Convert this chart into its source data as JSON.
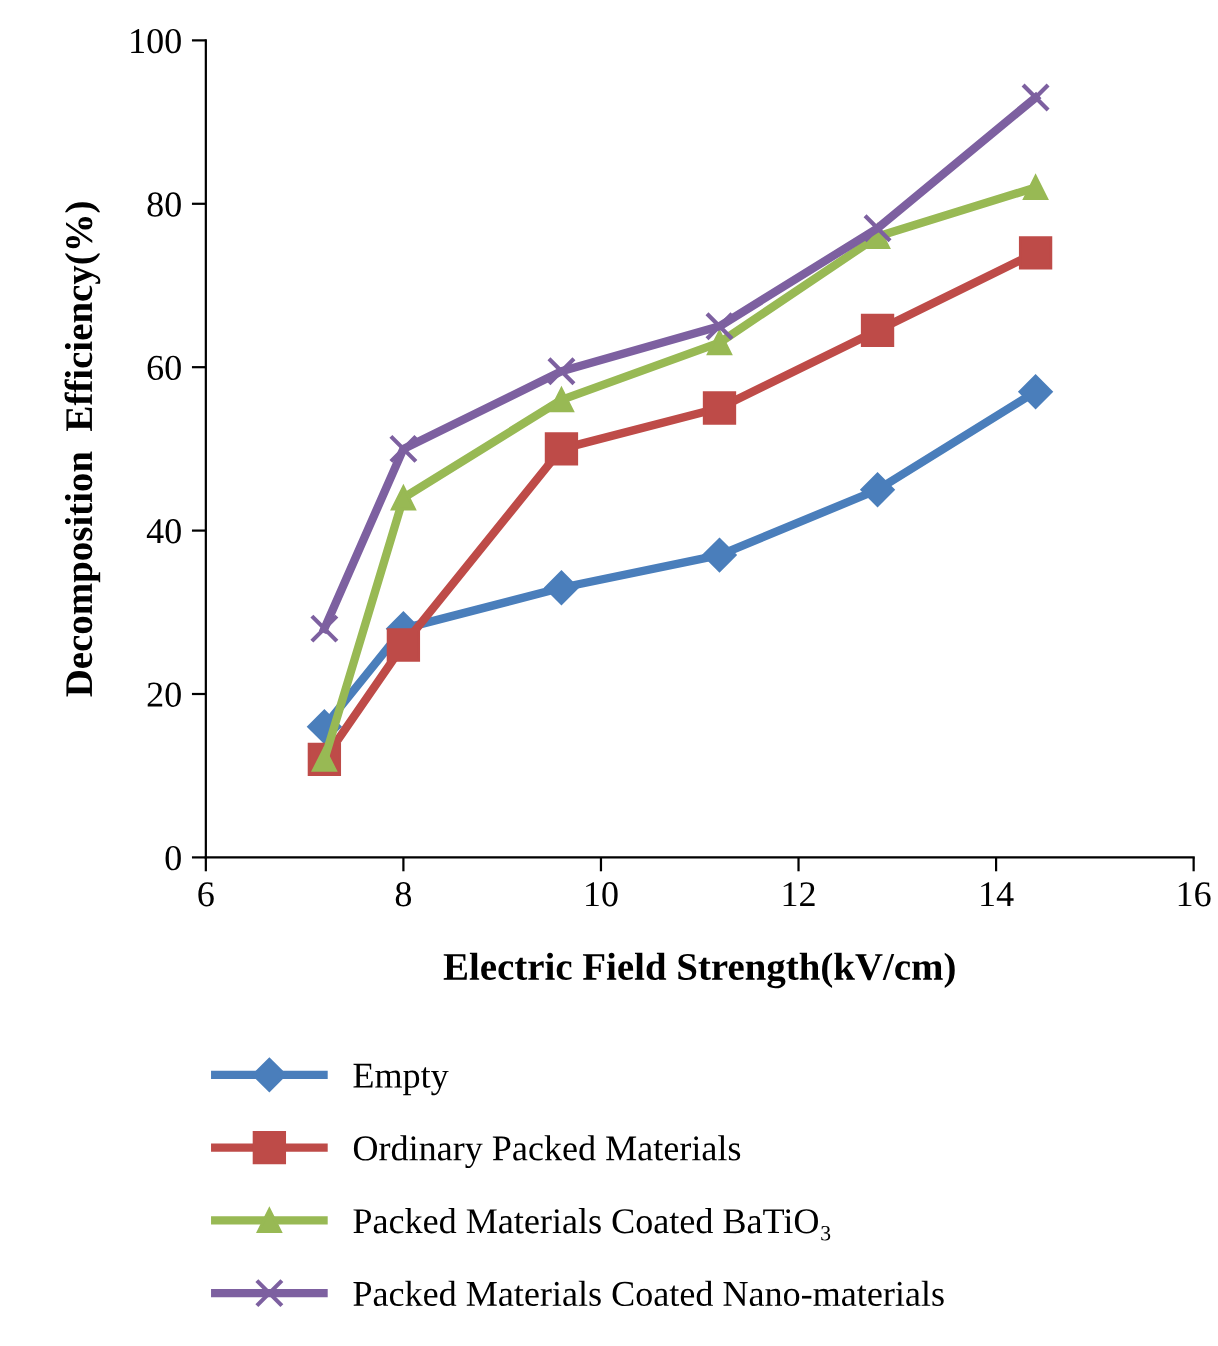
{
  "chart_data": {
    "type": "line",
    "xlabel": "Electric Field Strength(kV/cm)",
    "ylabel": "Decomposition  Efficiency(%)",
    "x": [
      7.2,
      8,
      9.6,
      11.2,
      12.8,
      14.4
    ],
    "series": [
      {
        "name": "Empty",
        "color": "#4a7ebb",
        "marker": "diamond",
        "values": [
          16,
          28,
          33,
          37,
          45,
          57
        ]
      },
      {
        "name": "Ordinary Packed Materials",
        "color": "#be4b48",
        "marker": "square",
        "values": [
          12,
          26,
          50,
          55,
          64.5,
          74
        ]
      },
      {
        "name": "Packed Materials Coated BaTiO₃",
        "color": "#98b954",
        "marker": "triangle",
        "values": [
          12,
          44,
          56,
          63,
          76,
          82
        ]
      },
      {
        "name": "Packed Materials Coated Nano-materials",
        "color": "#7d60a0",
        "marker": "cross",
        "values": [
          28,
          50,
          59.5,
          65,
          77,
          93
        ]
      }
    ],
    "xlim": [
      6,
      16
    ],
    "xticks": [
      6,
      8,
      10,
      12,
      14,
      16
    ],
    "ylim": [
      0,
      100
    ],
    "yticks": [
      0,
      20,
      40,
      60,
      80,
      100
    ],
    "grid": false,
    "legend": "bottom",
    "line_style": "solid"
  }
}
